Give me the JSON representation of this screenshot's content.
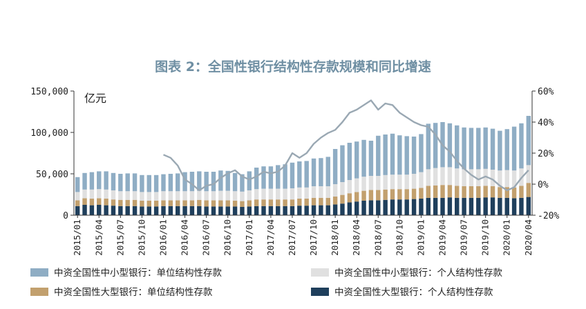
{
  "chart_data": {
    "type": "bar",
    "title": "图表 2：全国性银行结构性存款规模和同比增速",
    "y_unit_label": "亿元",
    "ylim": [
      0,
      150000
    ],
    "y_ticks": [
      "0",
      "50,000",
      "100,000",
      "150,000"
    ],
    "y2lim": [
      -20,
      60
    ],
    "y2_ticks": [
      "-20%",
      "0%",
      "20%",
      "40%",
      "60%"
    ],
    "x_ticks": [
      "2015/01",
      "2015/04",
      "2015/07",
      "2015/10",
      "2016/01",
      "2016/04",
      "2016/07",
      "2016/10",
      "2017/01",
      "2017/04",
      "2017/07",
      "2017/10",
      "2018/01",
      "2018/04",
      "2018/07",
      "2018/10",
      "2019/01",
      "2019/04",
      "2019/07",
      "2019/10",
      "2020/01",
      "2020/04"
    ],
    "x": [
      "2015/01",
      "2015/02",
      "2015/03",
      "2015/04",
      "2015/05",
      "2015/06",
      "2015/07",
      "2015/08",
      "2015/09",
      "2015/10",
      "2015/11",
      "2015/12",
      "2016/01",
      "2016/02",
      "2016/03",
      "2016/04",
      "2016/05",
      "2016/06",
      "2016/07",
      "2016/08",
      "2016/09",
      "2016/10",
      "2016/11",
      "2016/12",
      "2017/01",
      "2017/02",
      "2017/03",
      "2017/04",
      "2017/05",
      "2017/06",
      "2017/07",
      "2017/08",
      "2017/09",
      "2017/10",
      "2017/11",
      "2017/12",
      "2018/01",
      "2018/02",
      "2018/03",
      "2018/04",
      "2018/05",
      "2018/06",
      "2018/07",
      "2018/08",
      "2018/09",
      "2018/10",
      "2018/11",
      "2018/12",
      "2019/01",
      "2019/02",
      "2019/03",
      "2019/04",
      "2019/05",
      "2019/06",
      "2019/07",
      "2019/08",
      "2019/09",
      "2019/10",
      "2019/11",
      "2019/12",
      "2020/01",
      "2020/02",
      "2020/03",
      "2020/04"
    ],
    "stacked": true,
    "series": [
      {
        "name": "中资全国性大型银行：个人结构性存款",
        "color": "#1f3f5c",
        "axis": "left",
        "values": [
          11000,
          12500,
          12000,
          12500,
          12000,
          11500,
          11000,
          11000,
          11000,
          10500,
          10500,
          10500,
          11000,
          11000,
          11000,
          11000,
          11000,
          11000,
          10500,
          10500,
          10500,
          10500,
          10500,
          10000,
          10500,
          11000,
          11000,
          11000,
          11000,
          11000,
          11000,
          11500,
          11500,
          12000,
          12000,
          12000,
          13000,
          14000,
          15500,
          16500,
          17500,
          18000,
          18000,
          18500,
          19000,
          19000,
          19000,
          19500,
          20000,
          21000,
          21000,
          21000,
          21500,
          21000,
          21000,
          21000,
          21000,
          21500,
          21500,
          21000,
          21000,
          20500,
          21000,
          22000
        ]
      },
      {
        "name": "中资全国性大型银行：单位结构性存款",
        "color": "#c2a06e",
        "axis": "left",
        "values": [
          7000,
          8000,
          8000,
          8000,
          8000,
          7500,
          7500,
          7500,
          7500,
          7000,
          7000,
          7000,
          7000,
          7000,
          7000,
          7000,
          7000,
          7500,
          7500,
          7500,
          7500,
          7500,
          7000,
          7000,
          7500,
          8000,
          8000,
          8000,
          8000,
          8000,
          8000,
          8500,
          8500,
          9000,
          9000,
          9000,
          9500,
          10500,
          11000,
          11500,
          12000,
          12500,
          12500,
          12500,
          12500,
          12500,
          12500,
          12500,
          13000,
          14500,
          15000,
          15500,
          15000,
          14500,
          14000,
          14000,
          14000,
          14000,
          13500,
          13000,
          13000,
          13000,
          14500,
          17000
        ]
      },
      {
        "name": "中资全国性中小型银行：个人结构性存款",
        "color": "#e0e0e0",
        "axis": "left",
        "values": [
          10000,
          10500,
          11000,
          11000,
          11000,
          11000,
          10500,
          10500,
          10500,
          10500,
          10500,
          10500,
          11000,
          11000,
          11000,
          11000,
          11000,
          11000,
          11000,
          11000,
          11500,
          11500,
          11500,
          11500,
          12000,
          12500,
          13000,
          13000,
          13000,
          13000,
          13500,
          13500,
          13500,
          14000,
          14000,
          14000,
          15000,
          15500,
          16000,
          16500,
          17000,
          17000,
          17000,
          17500,
          17500,
          17500,
          17500,
          18000,
          19000,
          20000,
          21000,
          21500,
          21500,
          21000,
          20500,
          20500,
          20500,
          20500,
          20000,
          20000,
          20500,
          20500,
          21000,
          21500
        ]
      },
      {
        "name": "中资全国性中小型银行：单位结构性存款",
        "color": "#8fadc4",
        "axis": "left",
        "values": [
          18000,
          20000,
          21000,
          21500,
          22000,
          21000,
          21000,
          21500,
          21500,
          20500,
          20500,
          20500,
          20500,
          21000,
          21500,
          23000,
          23500,
          23500,
          23500,
          23500,
          24500,
          24000,
          22000,
          21000,
          23000,
          26000,
          27000,
          27000,
          28500,
          29500,
          31000,
          31500,
          32000,
          33500,
          34000,
          35500,
          42500,
          44500,
          45000,
          44500,
          44500,
          42500,
          48500,
          49000,
          49500,
          47500,
          46500,
          45000,
          46000,
          55000,
          54500,
          54500,
          53000,
          52000,
          50500,
          50000,
          50000,
          50000,
          49500,
          48000,
          49500,
          53000,
          54500,
          59500
        ]
      },
      {
        "name": "同比增速",
        "type": "line",
        "color": "#9aa8b3",
        "axis": "right",
        "values": [
          null,
          null,
          null,
          null,
          null,
          null,
          null,
          null,
          null,
          null,
          null,
          null,
          19,
          17,
          12,
          3,
          0,
          -4,
          -1,
          0,
          4,
          7,
          9,
          5,
          3,
          5,
          8,
          7,
          8,
          12,
          20,
          17,
          20,
          26,
          30,
          33,
          35,
          40,
          46,
          48,
          51,
          54,
          48,
          52,
          51,
          46,
          43,
          40,
          38,
          37,
          32,
          25,
          21,
          15,
          10,
          6,
          3,
          5,
          3,
          -1,
          -4,
          -2,
          4,
          9
        ]
      }
    ]
  }
}
